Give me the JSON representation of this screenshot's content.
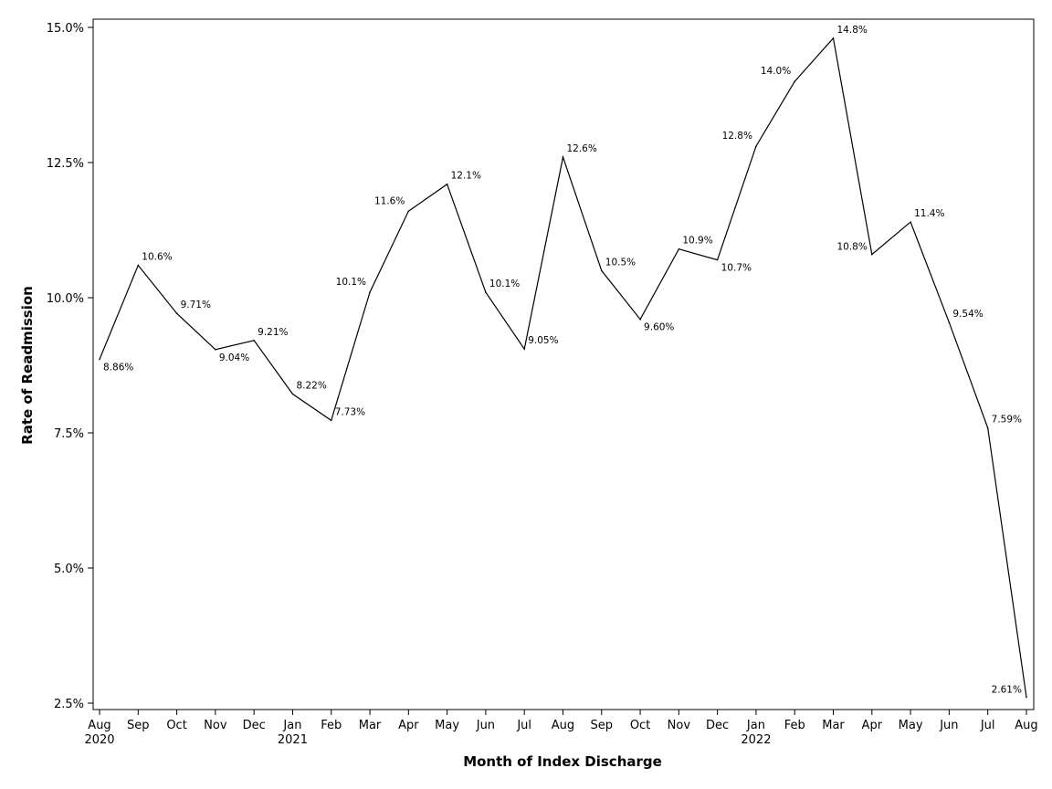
{
  "chart_data": {
    "type": "line",
    "title": "",
    "xlabel": "Month of Index Discharge",
    "ylabel": "Rate of Readmission",
    "ylim": [
      2.5,
      15.0
    ],
    "yticks": [
      2.5,
      5.0,
      7.5,
      10.0,
      12.5,
      15.0
    ],
    "ytick_labels": [
      "2.5%",
      "5.0%",
      "7.5%",
      "10.0%",
      "12.5%",
      "15.0%"
    ],
    "categories": [
      "Aug",
      "Sep",
      "Oct",
      "Nov",
      "Dec",
      "Jan",
      "Feb",
      "Mar",
      "Apr",
      "May",
      "Jun",
      "Jul",
      "Aug",
      "Sep",
      "Oct",
      "Nov",
      "Dec",
      "Jan",
      "Feb",
      "Mar",
      "Apr",
      "May",
      "Jun",
      "Jul",
      "Aug"
    ],
    "year_labels": [
      "2020",
      "",
      "",
      "",
      "",
      "2021",
      "",
      "",
      "",
      "",
      "",
      "",
      "",
      "",
      "",
      "",
      "",
      "2022",
      "",
      "",
      "",
      "",
      "",
      "",
      ""
    ],
    "values": [
      8.86,
      10.6,
      9.71,
      9.04,
      9.21,
      8.22,
      7.73,
      10.1,
      11.6,
      12.1,
      10.1,
      9.05,
      12.6,
      10.5,
      9.6,
      10.9,
      10.7,
      12.8,
      14.0,
      14.8,
      10.8,
      11.4,
      9.54,
      7.59,
      2.61
    ],
    "data_labels": [
      "8.86%",
      "10.6%",
      "9.71%",
      "9.04%",
      "9.21%",
      "8.22%",
      "7.73%",
      "10.1%",
      "11.6%",
      "12.1%",
      "10.1%",
      "9.05%",
      "12.6%",
      "10.5%",
      "9.60%",
      "10.9%",
      "10.7%",
      "12.8%",
      "14.0%",
      "14.8%",
      "10.8%",
      "11.4%",
      "9.54%",
      "7.59%",
      "2.61%"
    ],
    "label_positions": [
      "below-right",
      "above-right",
      "above-right",
      "below-right",
      "above-right",
      "above-right",
      "right",
      "above-left",
      "above-left",
      "above-right",
      "above-right",
      "right",
      "above-right",
      "above-right",
      "below-right",
      "above-right",
      "below-right",
      "above-left",
      "above-left",
      "above-right",
      "left",
      "above-right",
      "above-right",
      "above-right",
      "left"
    ],
    "grid": false,
    "legend": "none",
    "line_color": "#000000"
  }
}
